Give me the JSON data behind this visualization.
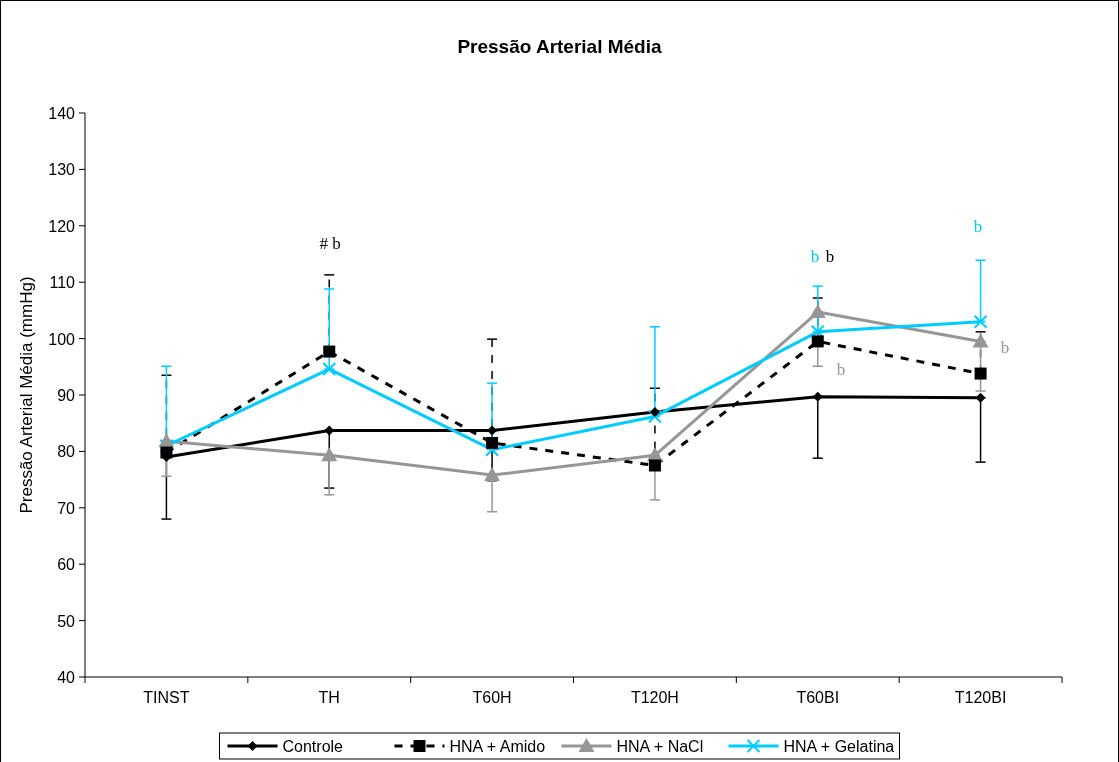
{
  "chart_data": {
    "type": "line",
    "title": "Pressão Arterial Média",
    "ylabel": "Pressão Arterial Média (mmHg)",
    "categories": [
      "TINST",
      "TH",
      "T60H",
      "T120H",
      "T60BI",
      "T120BI"
    ],
    "ylim": [
      40,
      140
    ],
    "yticks": [
      40,
      50,
      60,
      70,
      80,
      90,
      100,
      110,
      120,
      130,
      140
    ],
    "grid": false,
    "legend": "bottom",
    "series": [
      {
        "name": "Controle",
        "color": "#000000",
        "marker": "diamond",
        "line_style": "solid",
        "values": [
          79,
          83.7,
          83.7,
          87,
          89.7,
          89.5
        ],
        "errors": [
          [
            68,
            79
          ],
          [
            73.5,
            83.7
          ],
          [
            74.8,
            83.7
          ],
          null,
          [
            78.8,
            89.7
          ],
          [
            78.1,
            89.5
          ]
        ]
      },
      {
        "name": "HNA + Amido",
        "color": "#000000",
        "marker": "square",
        "line_style": "dashed",
        "values": [
          79.8,
          97.7,
          81.5,
          77.5,
          99.5,
          93.8
        ],
        "errors": [
          [
            79.8,
            93.5
          ],
          [
            97.7,
            111.3
          ],
          [
            81.5,
            99.9
          ],
          [
            77.5,
            91.2
          ],
          [
            99.5,
            107.2
          ],
          [
            93.8,
            101.2
          ]
        ]
      },
      {
        "name": "HNA + NaCl",
        "color": "#969696",
        "marker": "triangle",
        "line_style": "solid",
        "values": [
          81.8,
          79.3,
          75.8,
          79.3,
          104.7,
          99.5
        ],
        "errors": [
          [
            75.6,
            81.8
          ],
          [
            72.3,
            79.3
          ],
          [
            69.3,
            75.8
          ],
          [
            71.4,
            79.3
          ],
          [
            95.1,
            104.7
          ],
          [
            90.7,
            99.5
          ]
        ]
      },
      {
        "name": "HNA + Gelatina",
        "color": "#00ccff",
        "marker": "cross",
        "line_style": "solid",
        "values": [
          81,
          94.6,
          80.3,
          86.2,
          101.2,
          103
        ],
        "errors": [
          [
            81,
            95.1
          ],
          [
            94.6,
            108.8
          ],
          [
            80.3,
            92.1
          ],
          [
            86.2,
            102.1
          ],
          [
            101.2,
            109.3
          ],
          [
            103,
            113.9
          ]
        ]
      }
    ],
    "annotations": [
      "# b",
      "b",
      "b",
      "b",
      "b",
      "b"
    ]
  }
}
